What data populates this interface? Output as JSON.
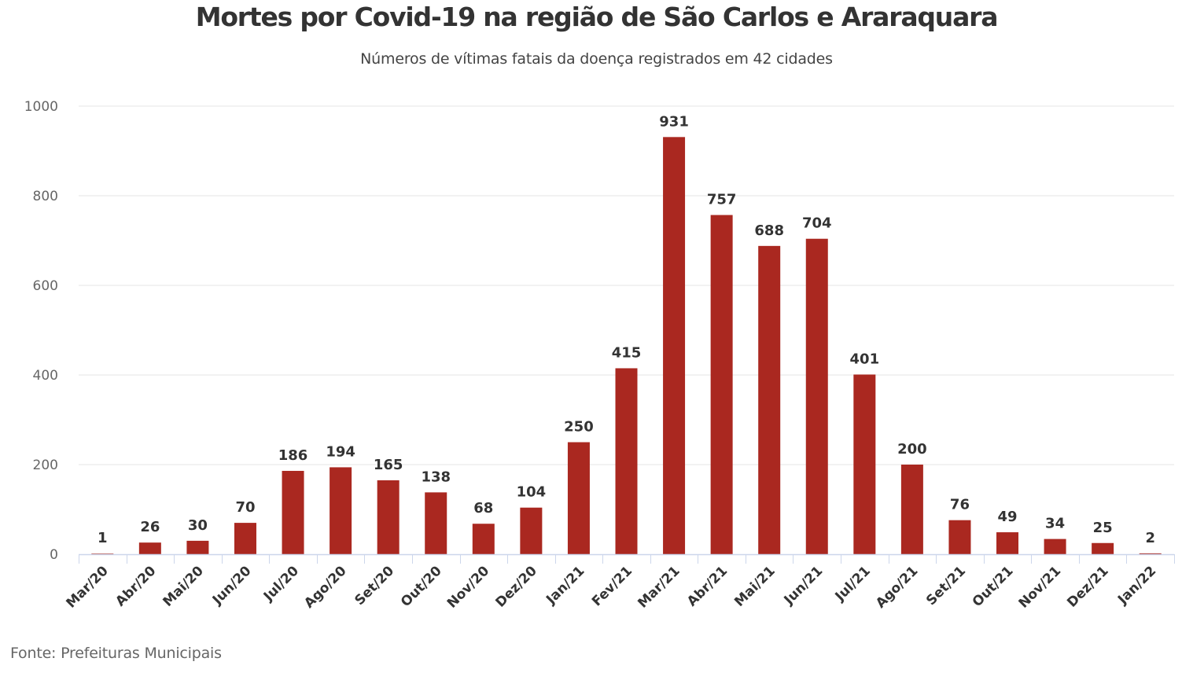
{
  "title": "Mortes por Covid-19 na região de São Carlos e Araraquara",
  "subtitle": "Números de vítimas fatais da doença registrados em 42 cidades",
  "source": "Fonte: Prefeituras Municipais",
  "colors": {
    "bar": "#aa2820",
    "grid": "#e6e6e6",
    "axis": "#ccd6eb"
  },
  "chart_data": {
    "type": "bar",
    "categories": [
      "Mar/20",
      "Abr/20",
      "Mai/20",
      "Jun/20",
      "Jul/20",
      "Ago/20",
      "Set/20",
      "Out/20",
      "Nov/20",
      "Dez/20",
      "Jan/21",
      "Fev/21",
      "Mar/21",
      "Abr/21",
      "Mai/21",
      "Jun/21",
      "Jul/21",
      "Ago/21",
      "Set/21",
      "Out/21",
      "Nov/21",
      "Dez/21",
      "Jan/22"
    ],
    "values": [
      1,
      26,
      30,
      70,
      186,
      194,
      165,
      138,
      68,
      104,
      250,
      415,
      931,
      757,
      688,
      704,
      401,
      200,
      76,
      49,
      34,
      25,
      2
    ],
    "ylim": [
      0,
      1000
    ],
    "yticks": [
      0,
      200,
      400,
      600,
      800,
      1000
    ],
    "xlabel": "",
    "ylabel": "",
    "grid": true,
    "data_labels": true,
    "legend": "none"
  }
}
